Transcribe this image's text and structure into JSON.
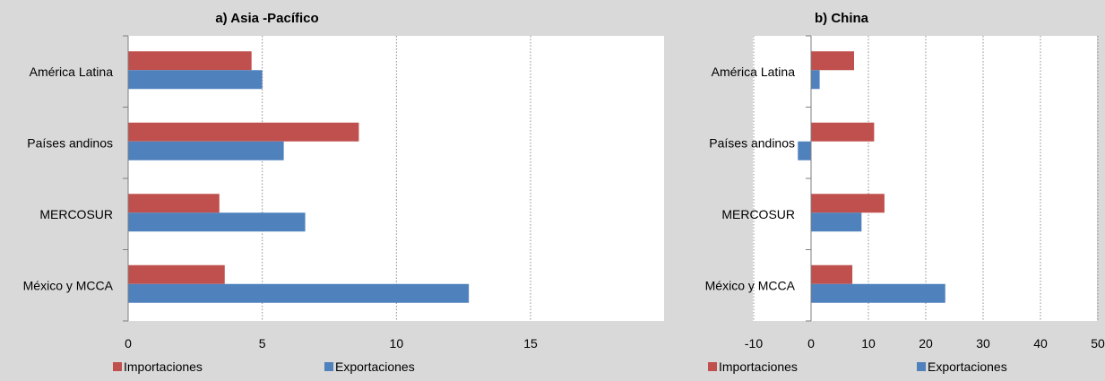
{
  "colors": {
    "background": "#d9d9d9",
    "plot_area": "#ffffff",
    "importaciones": "#c0504d",
    "exportaciones": "#4f81bd",
    "axis": "#7f7f7f",
    "grid": "#8c8c8c"
  },
  "chart_data": [
    {
      "type": "bar",
      "orientation": "horizontal",
      "title": "a) Asia -Pacífico",
      "categories": [
        "América Latina",
        "Países andinos",
        "MERCOSUR",
        "México y MCCA"
      ],
      "series": [
        {
          "name": "Importaciones",
          "values": [
            4.6,
            8.6,
            3.4,
            3.6
          ]
        },
        {
          "name": "Exportaciones",
          "values": [
            5.0,
            5.8,
            6.6,
            12.7
          ]
        }
      ],
      "xlim": [
        0,
        15
      ],
      "xticks": [
        "0",
        "5",
        "10",
        "15"
      ],
      "grid": "vertical dotted",
      "legend": "bottom"
    },
    {
      "type": "bar",
      "orientation": "horizontal",
      "title": "b) China",
      "categories": [
        "América Latina",
        "Países andinos",
        "MERCOSUR",
        "México y MCCA"
      ],
      "series": [
        {
          "name": "Importaciones",
          "values": [
            7.5,
            11.0,
            12.8,
            7.2
          ]
        },
        {
          "name": "Exportaciones",
          "values": [
            1.5,
            -2.3,
            8.8,
            23.4
          ]
        }
      ],
      "xlim": [
        -10,
        50
      ],
      "xticks": [
        "-10",
        "0",
        "10",
        "20",
        "30",
        "40",
        "50"
      ],
      "grid": "vertical dotted",
      "legend": "bottom"
    }
  ]
}
